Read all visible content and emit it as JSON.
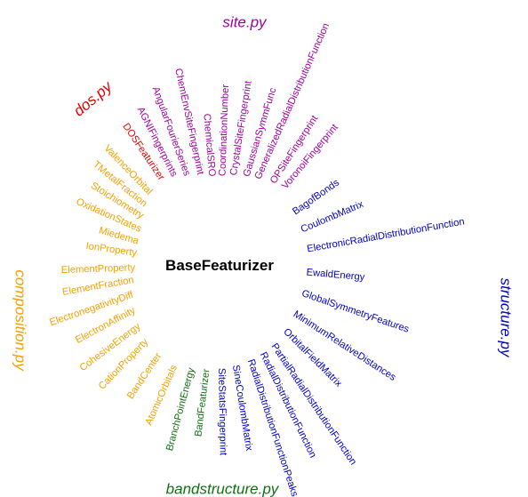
{
  "center": "BaseFeaturizer",
  "groups": [
    {
      "key": "site",
      "label": "site.py",
      "color": "#A000A0",
      "leaves": [
        "ChemicalSRO",
        "CoordinationNumber",
        "CrystalSiteFingerprint",
        "GaussianSymmFunc",
        "GeneralizedRadialDistributionFunction",
        "OPSiteFingerprint",
        "VoronoiFingerprint",
        "ChemEnvSiteFingerprint",
        "AngularFourierSeries",
        "AGNIFingerprints"
      ]
    },
    {
      "key": "dos",
      "label": "dos.py",
      "color": "#E60000",
      "leaves": [
        "DOSFeaturizer"
      ]
    },
    {
      "key": "composition",
      "label": "composition.py",
      "color": "#F5A000",
      "leaves": [
        "ValenceOrbital",
        "TMetalFraction",
        "Stoichiometry",
        "OxidationStates",
        "Miedema",
        "IonProperty",
        "ElementProperty",
        "ElementFraction",
        "ElectronegativityDiff",
        "ElectronAffinity",
        "CohesiveEnergy",
        "CationProperty",
        "BandCenter",
        "AtomicOrbitals"
      ]
    },
    {
      "key": "bandstructure",
      "label": "bandstructure.py",
      "color": "#107010",
      "leaves": [
        "BranchPointEnergy",
        "BandFeaturizer"
      ]
    },
    {
      "key": "structure",
      "label": "structure.py",
      "color": "#0000D0",
      "leaves": [
        "SiteStatsFingerprint",
        "SineCoulombMatrix",
        "RadialDistributionFunctionPeaks",
        "RadialDistributionFunction",
        "PartialRadialDistributionFunction",
        "OrbitalFieldMatrix",
        "MinimumRelativeDistances",
        "GlobalSymmetryFeatures",
        "EwaldEnergy",
        "ElectronicRadialDistributionFunction",
        "CoulombMatrix",
        "BagofBonds"
      ]
    }
  ]
}
